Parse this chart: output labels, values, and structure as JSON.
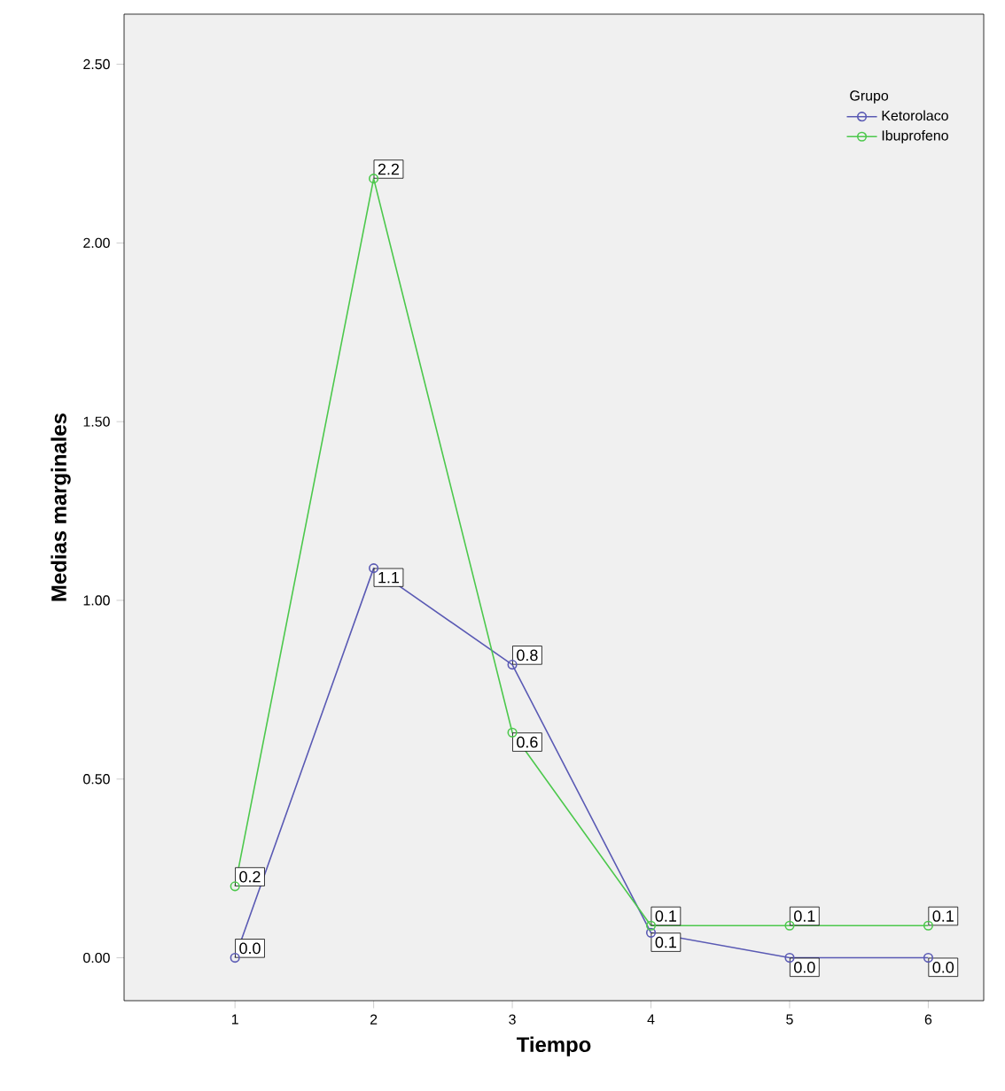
{
  "chart_data": {
    "type": "line",
    "xlabel": "Tiempo",
    "ylabel": "Medias marginales",
    "legend_title": "Grupo",
    "legend": "top right",
    "marker": "circle",
    "x": [
      1,
      2,
      3,
      4,
      5,
      6
    ],
    "xlim": [
      0.2,
      6.4
    ],
    "xticks": [
      1,
      2,
      3,
      4,
      5,
      6
    ],
    "ylim": [
      -0.12,
      2.64
    ],
    "yticks": [
      {
        "value": 0,
        "label": "0.00"
      },
      {
        "value": 0.5,
        "label": "0.50"
      },
      {
        "value": 1,
        "label": "1.00"
      },
      {
        "value": 1.5,
        "label": "1.50"
      },
      {
        "value": 2,
        "label": "2.00"
      },
      {
        "value": 2.5,
        "label": "2.50"
      }
    ],
    "series": [
      {
        "name": "Ketorolaco",
        "color": "#5a5ab4",
        "values": [
          0.0,
          1.09,
          0.82,
          0.07,
          0.0,
          0.0
        ],
        "value_labels": [
          "0.0",
          "1.1",
          "0.8",
          "0.1",
          "0.0",
          "0.0"
        ]
      },
      {
        "name": "Ibuprofeno",
        "color": "#4cc84c",
        "values": [
          0.2,
          2.18,
          0.63,
          0.09,
          0.09,
          0.09
        ],
        "value_labels": [
          "0.2",
          "2.2",
          "0.6",
          "0.1",
          "0.1",
          "0.1"
        ]
      }
    ]
  }
}
